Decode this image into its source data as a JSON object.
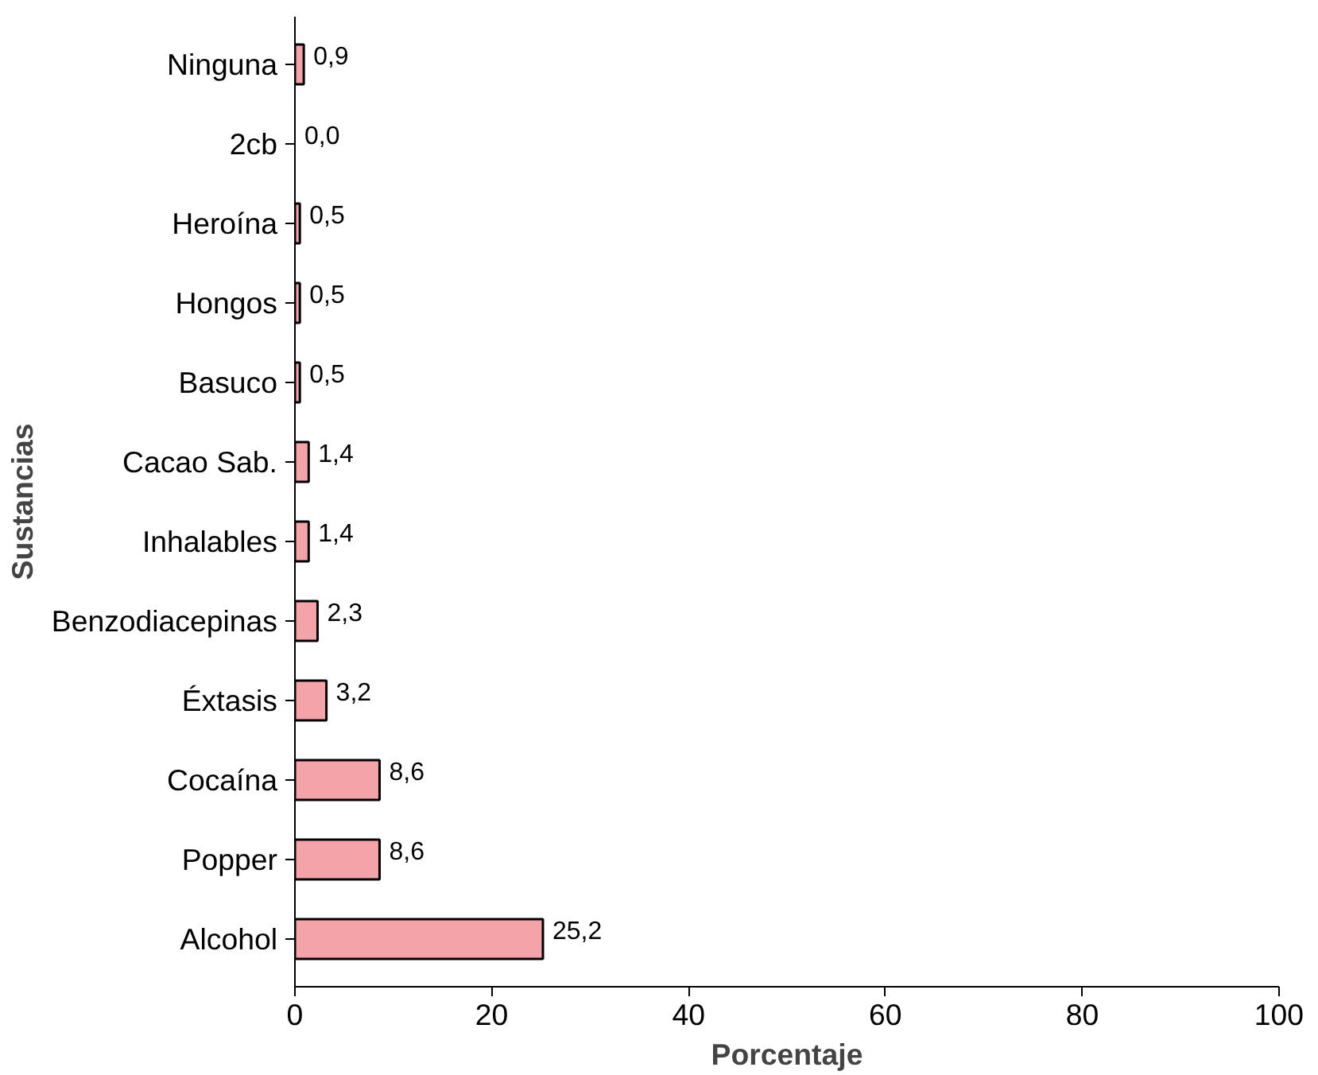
{
  "chart_data": {
    "type": "bar",
    "orientation": "horizontal",
    "xlabel": "Porcentaje",
    "ylabel": "Sustancias",
    "categories": [
      "Ninguna",
      "2cb",
      "Heroína",
      "Hongos",
      "Basuco",
      "Cacao Sab.",
      "Inhalables",
      "Benzodiacepinas",
      "Éxtasis",
      "Cocaína",
      "Popper",
      "Alcohol"
    ],
    "values": [
      0.9,
      0.0,
      0.5,
      0.5,
      0.5,
      1.4,
      1.4,
      2.3,
      3.2,
      8.6,
      8.6,
      25.2
    ],
    "value_labels": [
      "0,9",
      "0,0",
      "0,5",
      "0,5",
      "0,5",
      "1,4",
      "1,4",
      "2,3",
      "3,2",
      "8,6",
      "8,6",
      "25,2"
    ],
    "color": "#f4a3a8",
    "xlim": [
      0,
      100
    ],
    "xticks": [
      0,
      20,
      40,
      60,
      80,
      100
    ],
    "grid": false
  }
}
